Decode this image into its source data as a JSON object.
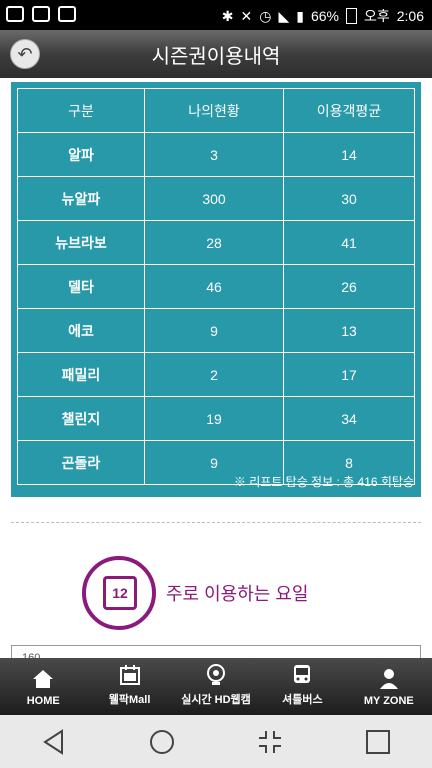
{
  "status_bar": {
    "battery": "66%",
    "time_prefix": "오후",
    "time": "2:06"
  },
  "header": {
    "title": "시즌권이용내역"
  },
  "table": {
    "headers": [
      "구분",
      "나의현황",
      "이용객평균"
    ],
    "rows": [
      {
        "label": "알파",
        "mine": "3",
        "avg": "14"
      },
      {
        "label": "뉴알파",
        "mine": "300",
        "avg": "30"
      },
      {
        "label": "뉴브라보",
        "mine": "28",
        "avg": "41"
      },
      {
        "label": "델타",
        "mine": "46",
        "avg": "26"
      },
      {
        "label": "에코",
        "mine": "9",
        "avg": "13"
      },
      {
        "label": "패밀리",
        "mine": "2",
        "avg": "17"
      },
      {
        "label": "챌린지",
        "mine": "19",
        "avg": "34"
      },
      {
        "label": "곤돌라",
        "mine": "9",
        "avg": "8"
      }
    ],
    "note": "※ 리프트 탑승 정보 : 총 416 회탑승"
  },
  "section": {
    "calendar_number": "12",
    "title": "주로 이용하는 요일",
    "chart_first_tick": "160"
  },
  "bottom_nav": [
    {
      "label": "HOME",
      "icon": "home-icon"
    },
    {
      "label": "웰팍Mall",
      "icon": "calendar-icon"
    },
    {
      "label": "실시간 HD웹캠",
      "icon": "webcam-icon"
    },
    {
      "label": "셔틀버스",
      "icon": "bus-icon"
    },
    {
      "label": "MY ZONE",
      "icon": "person-icon"
    }
  ],
  "colors": {
    "teal": "#2799a8",
    "purple": "#8a1a7c"
  }
}
